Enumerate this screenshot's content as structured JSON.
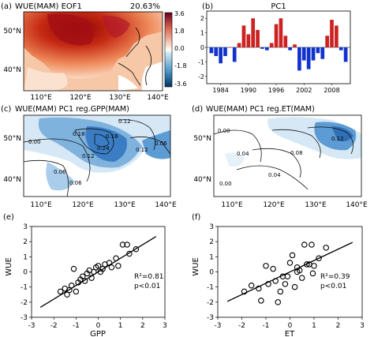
{
  "figure": {
    "panels": [
      {
        "id": "a",
        "tag": "(a)",
        "title": "WUE(MAM) EOF1",
        "stat": "20.63%",
        "lon_ticks": [
          "110°E",
          "120°E",
          "130°E",
          "140°E"
        ],
        "lat_ticks": [
          "50°N",
          "40°N"
        ],
        "colorbar_ticks": [
          "3.6",
          "1.8",
          "0.0",
          "-1.8",
          "-3.6"
        ]
      },
      {
        "id": "b",
        "tag": "(b)",
        "title": "PC1",
        "x_ticks": [
          "1984",
          "1990",
          "1996",
          "2002",
          "2008"
        ],
        "y_ticks": [
          "2",
          "1",
          "0",
          "-1",
          "-2"
        ]
      },
      {
        "id": "c",
        "tag": "(c)",
        "title": "WUE(MAM) PC1 reg.GPP(MAM)",
        "lon_ticks": [
          "110°E",
          "120°E",
          "130°E",
          "140°E"
        ],
        "lat_ticks": [
          "50°N",
          "40°N"
        ],
        "contour_labels": [
          "0.12",
          "0.00",
          "0.18",
          "0.18",
          "0.24",
          "0.12",
          "0.12",
          "0.06",
          "0.06",
          "0.06"
        ]
      },
      {
        "id": "d",
        "tag": "(d)",
        "title": "WUE(MAM) PC1 reg.ET(MAM)",
        "lon_ticks": [
          "110°E",
          "120°E",
          "130°E",
          "140°E"
        ],
        "lat_ticks": [
          "50°N",
          "40°N"
        ],
        "contour_labels": [
          "0.00",
          "0.04",
          "0.00",
          "0.04",
          "0.08",
          "0.12"
        ]
      },
      {
        "id": "e",
        "tag": "(e)",
        "xlabel": "GPP",
        "ylabel": "WUE",
        "r2": "R²=0.81",
        "p": "p<0.01",
        "x_ticks": [
          "-3",
          "-2",
          "-1",
          "0",
          "1",
          "2",
          "3"
        ],
        "y_ticks": [
          "3",
          "2",
          "1",
          "0",
          "-1",
          "-2",
          "-3"
        ]
      },
      {
        "id": "f",
        "tag": "(f)",
        "xlabel": "ET",
        "ylabel": "WUE",
        "r2": "R²=0.39",
        "p": "p<0.01",
        "x_ticks": [
          "-3",
          "-2",
          "-1",
          "0",
          "1",
          "2",
          "3"
        ],
        "y_ticks": [
          "3",
          "2",
          "1",
          "0",
          "-1",
          "-2",
          "-3"
        ]
      }
    ]
  },
  "chart_data": [
    {
      "type": "heatmap",
      "panel": "a",
      "title": "WUE(MAM) EOF1",
      "variance_explained": "20.63%",
      "lon_range": [
        105,
        140
      ],
      "lat_range": [
        35,
        55
      ],
      "colorbar_range": [
        -3.6,
        3.6
      ],
      "colors": {
        "positive": "#b2182b",
        "negative": "#2166ac"
      }
    },
    {
      "type": "bar",
      "panel": "b",
      "title": "PC1",
      "categories": [
        1982,
        1983,
        1984,
        1985,
        1986,
        1987,
        1988,
        1989,
        1990,
        1991,
        1992,
        1993,
        1994,
        1995,
        1996,
        1997,
        1998,
        1999,
        2000,
        2001,
        2002,
        2003,
        2004,
        2005,
        2006,
        2007,
        2008,
        2009,
        2010,
        2011
      ],
      "values": [
        -0.4,
        -0.6,
        -1.1,
        -0.6,
        0.0,
        -1.0,
        0.3,
        1.5,
        0.9,
        2.0,
        1.2,
        -0.1,
        -0.2,
        0.3,
        1.6,
        2.0,
        0.8,
        -0.2,
        0.2,
        -1.6,
        -0.9,
        -1.5,
        -0.9,
        -0.4,
        -0.8,
        0.8,
        1.9,
        1.5,
        -0.2,
        -1.0
      ],
      "ylim": [
        -2.5,
        2.5
      ],
      "colors": {
        "positive": "#cc2222",
        "negative": "#1133cc"
      }
    },
    {
      "type": "heatmap",
      "panel": "c",
      "title": "WUE(MAM) PC1 reg.GPP(MAM)",
      "lon_range": [
        105,
        140
      ],
      "lat_range": [
        35,
        55
      ]
    },
    {
      "type": "heatmap",
      "panel": "d",
      "title": "WUE(MAM) PC1 reg.ET(MAM)",
      "lon_range": [
        105,
        140
      ],
      "lat_range": [
        35,
        55
      ]
    },
    {
      "type": "scatter",
      "panel": "e",
      "xlabel": "GPP",
      "ylabel": "WUE",
      "xlim": [
        -3,
        3
      ],
      "ylim": [
        -3,
        3
      ],
      "x": [
        -1.7,
        -1.5,
        -1.3,
        -1.2,
        -1.0,
        -0.9,
        -1.1,
        -0.7,
        -0.5,
        -0.4,
        -0.2,
        -0.1,
        0.0,
        0.2,
        0.3,
        0.5,
        0.6,
        0.8,
        1.1,
        1.3,
        1.4,
        1.7,
        -0.3,
        0.1,
        -0.6,
        0.9,
        -1.4,
        -0.8
      ],
      "y": [
        -1.3,
        -1.1,
        -1.2,
        -0.9,
        -1.3,
        -0.7,
        0.2,
        -0.3,
        -0.1,
        0.1,
        0.0,
        0.3,
        0.4,
        0.2,
        0.5,
        0.6,
        0.3,
        0.9,
        1.8,
        1.8,
        1.2,
        1.5,
        -0.4,
        0.0,
        -0.6,
        0.4,
        -1.5,
        -0.5
      ],
      "fit": {
        "slope": 0.9,
        "intercept": 0.0
      },
      "r2": "R²=0.81",
      "p": "p<0.01"
    },
    {
      "type": "scatter",
      "panel": "f",
      "xlabel": "ET",
      "ylabel": "WUE",
      "xlim": [
        -3,
        3
      ],
      "ylim": [
        -3,
        3
      ],
      "x": [
        -1.9,
        -1.6,
        -1.3,
        -1.0,
        -0.9,
        -0.7,
        -0.6,
        -0.4,
        -0.3,
        -0.2,
        0.0,
        0.1,
        0.2,
        0.3,
        0.4,
        0.6,
        0.7,
        0.8,
        0.9,
        1.0,
        1.2,
        1.5,
        -0.5,
        0.5,
        0.3,
        -1.2,
        -0.1,
        0.95
      ],
      "y": [
        -1.3,
        -0.9,
        -1.1,
        0.4,
        -0.8,
        0.2,
        -0.6,
        -1.3,
        -0.3,
        -0.8,
        0.6,
        1.1,
        -1.0,
        0.0,
        0.1,
        1.8,
        0.5,
        0.5,
        1.8,
        0.4,
        0.9,
        1.6,
        -2.0,
        -0.4,
        0.3,
        -1.9,
        -0.3,
        -0.1
      ],
      "fit": {
        "slope": 0.75,
        "intercept": 0.0
      },
      "r2": "R²=0.39",
      "p": "p<0.01"
    }
  ]
}
